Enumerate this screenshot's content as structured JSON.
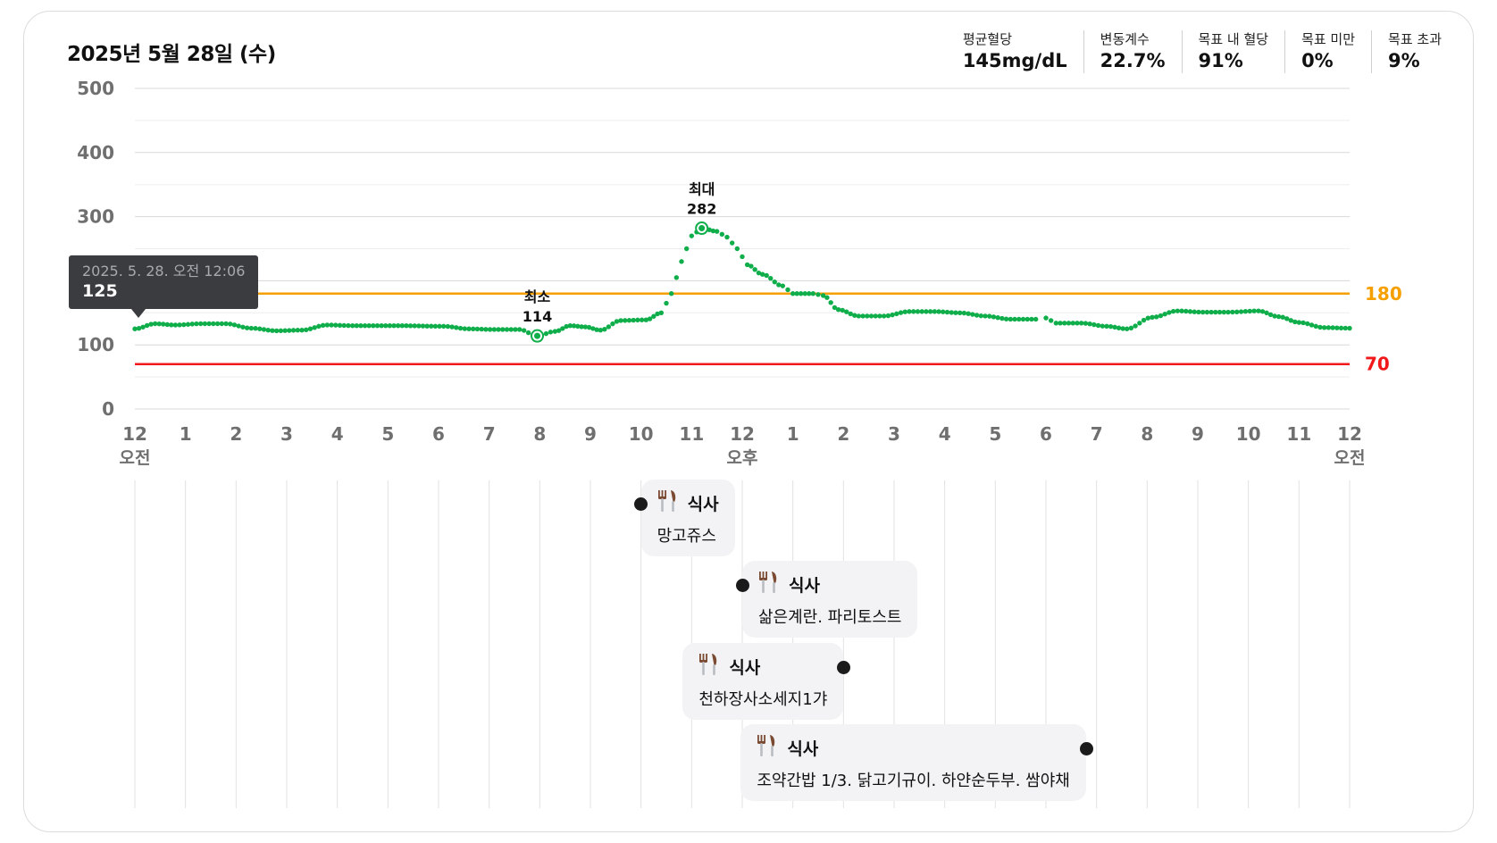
{
  "header": {
    "date": "2025년 5월 28일 (수)",
    "stats": [
      {
        "label": "평균혈당",
        "value": "145mg/dL"
      },
      {
        "label": "변동계수",
        "value": "22.7%"
      },
      {
        "label": "목표 내 혈당",
        "value": "91%"
      },
      {
        "label": "목표 미만",
        "value": "0%"
      },
      {
        "label": "목표 초과",
        "value": "9%"
      }
    ]
  },
  "tooltip": {
    "time": "2025. 5. 28. 오전 12:06",
    "value": "125"
  },
  "chart_data": {
    "type": "scatter",
    "title": "",
    "xlabel": "",
    "ylabel": "",
    "xlim": [
      0,
      24
    ],
    "ylim": [
      0,
      500
    ],
    "y_ticks": [
      "0",
      "100",
      "200",
      "300",
      "400",
      "500"
    ],
    "y_tick_values": [
      0,
      100,
      200,
      300,
      400,
      500
    ],
    "x_ticks": [
      "12",
      "1",
      "2",
      "3",
      "4",
      "5",
      "6",
      "7",
      "8",
      "9",
      "10",
      "11",
      "12",
      "1",
      "2",
      "3",
      "4",
      "5",
      "6",
      "7",
      "8",
      "9",
      "10",
      "11",
      "12"
    ],
    "x_tick_sublabels": [
      {
        "index": 0,
        "label": "오전"
      },
      {
        "index": 12,
        "label": "오후"
      },
      {
        "index": 24,
        "label": "오전"
      }
    ],
    "thresholds": [
      {
        "value": 180,
        "label": "180",
        "color": "#f5a000"
      },
      {
        "value": 70,
        "label": "70",
        "color": "#f01818"
      }
    ],
    "series_color": "#0fae4b",
    "key_points": [
      {
        "x": [
          0,
          0.4,
          0.8,
          1.3,
          1.8,
          2.3,
          2.8,
          3.3,
          3.8,
          4.3,
          5.2,
          6.1,
          6.6,
          7.1,
          7.6,
          7.95,
          8.3,
          8.6,
          8.9,
          9.2,
          9.6,
          10.1,
          10.4,
          10.6,
          10.8,
          11.0,
          11.2,
          11.5,
          11.7,
          11.9,
          12.1,
          12.4,
          12.8,
          13.0,
          13.4,
          13.6,
          13.9,
          14.3,
          14.8,
          15.3,
          15.8,
          16.3,
          16.8,
          17.3,
          17.8
        ],
        "y": [
          125,
          133,
          131,
          133,
          133,
          126,
          122,
          123,
          131,
          130,
          130,
          129,
          125,
          124,
          124,
          114,
          121,
          130,
          128,
          123,
          138,
          139,
          150,
          180,
          230,
          270,
          282,
          277,
          268,
          250,
          225,
          210,
          192,
          180,
          180,
          177,
          155,
          145,
          145,
          152,
          152,
          150,
          145,
          140,
          140
        ]
      },
      {
        "x": [
          18.0,
          18.2,
          18.7,
          19.2,
          19.6,
          20.1,
          20.6,
          21.1,
          21.6,
          22.2,
          22.6,
          23.0,
          23.5,
          24.0
        ],
        "y": [
          142,
          134,
          134,
          129,
          125,
          143,
          153,
          151,
          151,
          153,
          144,
          135,
          127,
          126
        ]
      }
    ],
    "annotations": [
      {
        "label": "최소",
        "value": "114",
        "x": 7.95,
        "y": 114
      },
      {
        "label": "최대",
        "value": "282",
        "x": 11.2,
        "y": 282
      }
    ]
  },
  "meals": [
    {
      "time": 10.0,
      "type": "식사",
      "description": "망고쥬스",
      "card_side": "right"
    },
    {
      "time": 12.0,
      "type": "식사",
      "description": "삶은계란. 파리토스트",
      "card_side": "right"
    },
    {
      "time": 14.0,
      "type": "식사",
      "description": "천하장사소세지1갸",
      "card_side": "left"
    },
    {
      "time": 18.8,
      "type": "식사",
      "description": "조약간밥 1/3. 닭고기규이. 하얀순두부. 쌈야채",
      "card_side": "left"
    }
  ]
}
